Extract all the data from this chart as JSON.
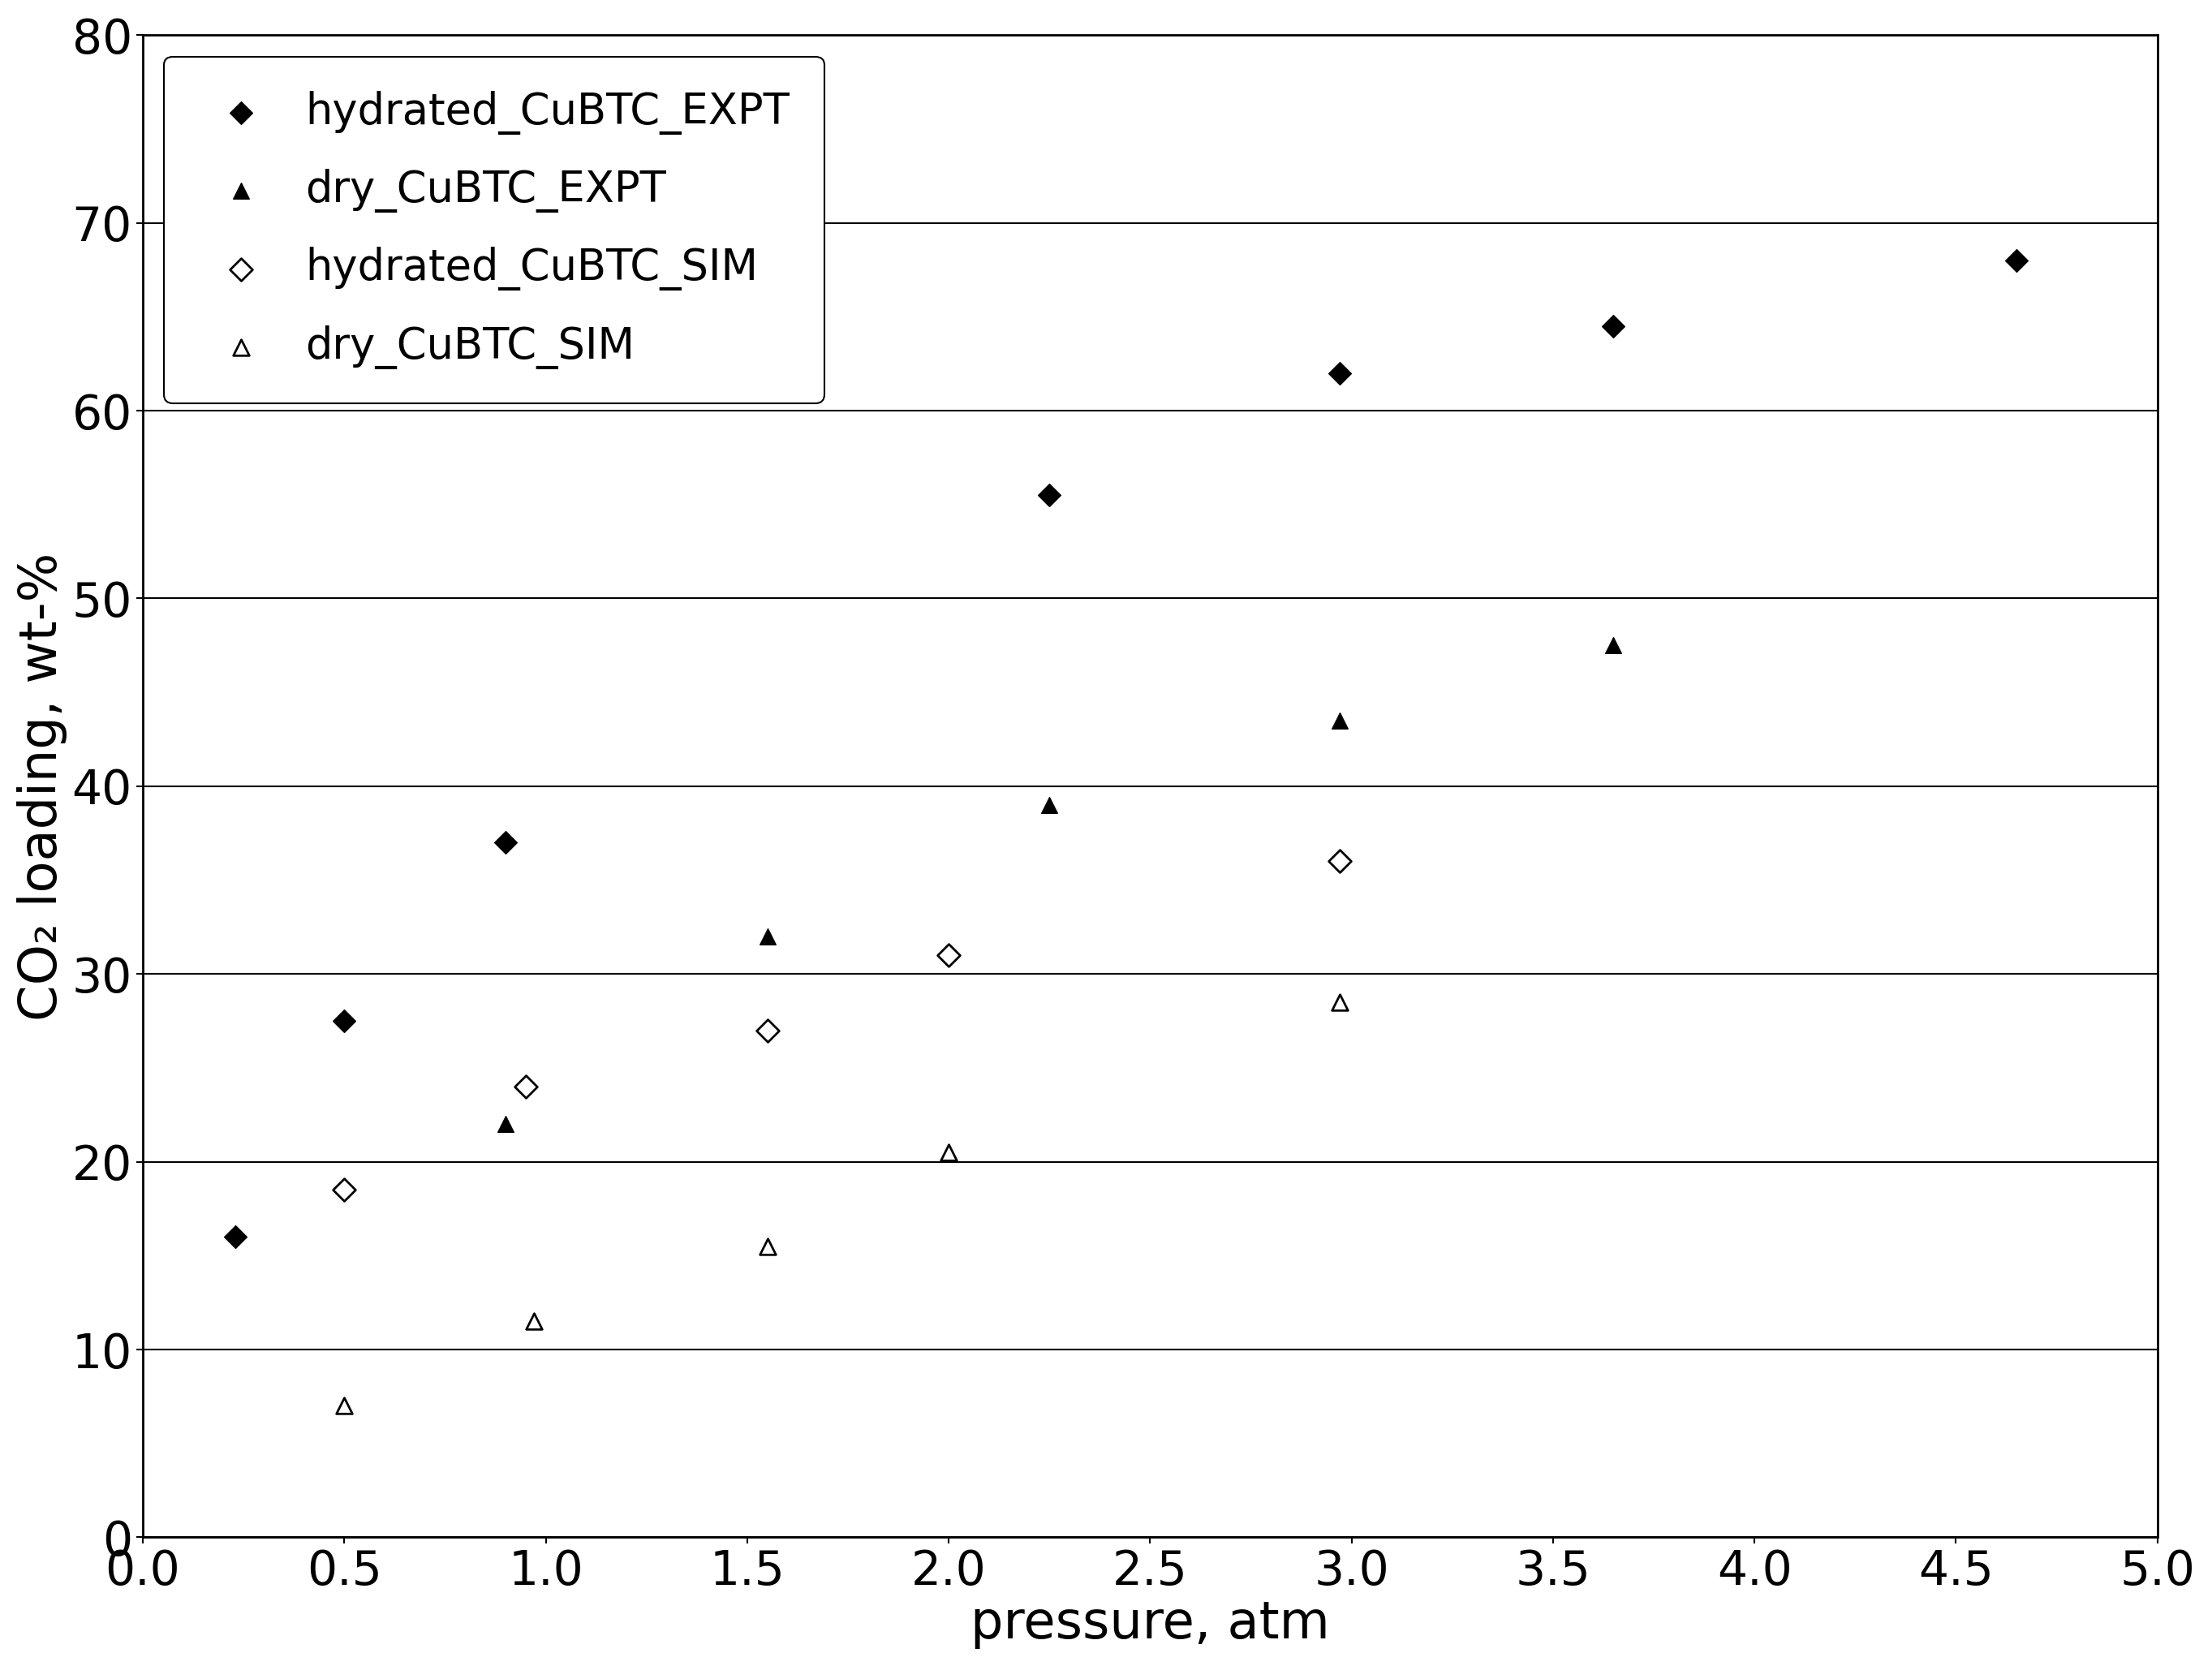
{
  "hydrated_EXPT": {
    "x": [
      0.23,
      0.5,
      0.9,
      2.25,
      2.97,
      3.65,
      4.65
    ],
    "y": [
      16.0,
      27.5,
      37.0,
      55.5,
      62.0,
      64.5,
      68.0
    ]
  },
  "dry_EXPT": {
    "x": [
      0.9,
      1.55,
      2.25,
      2.97,
      3.65
    ],
    "y": [
      22.0,
      32.0,
      39.0,
      43.5,
      47.5
    ]
  },
  "hydrated_SIM": {
    "x": [
      0.5,
      0.95,
      1.55,
      2.0,
      2.97
    ],
    "y": [
      18.5,
      24.0,
      27.0,
      31.0,
      36.0
    ]
  },
  "dry_SIM": {
    "x": [
      0.5,
      0.97,
      1.55,
      2.0,
      2.97
    ],
    "y": [
      7.0,
      11.5,
      15.5,
      20.5,
      28.5
    ]
  },
  "xlabel": "pressure, atm",
  "ylabel": "CO₂ loading, wt-%",
  "xlim": [
    0,
    5
  ],
  "ylim": [
    0,
    80
  ],
  "xticks": [
    0,
    0.5,
    1,
    1.5,
    2,
    2.5,
    3,
    3.5,
    4,
    4.5,
    5
  ],
  "yticks": [
    0,
    10,
    20,
    30,
    40,
    50,
    60,
    70,
    80
  ],
  "legend_labels": [
    "hydrated_CuBTC_EXPT",
    "dry_CuBTC_EXPT",
    "hydrated_CuBTC_SIM",
    "dry_CuBTC_SIM"
  ],
  "marker_size": 200,
  "xlabel_fontsize": 46,
  "ylabel_fontsize": 46,
  "tick_fontsize": 42,
  "legend_fontsize": 38,
  "grid_linewidth": 1.5,
  "spine_linewidth": 2.0,
  "figure_facecolor": "#ffffff",
  "axes_facecolor": "#ffffff"
}
